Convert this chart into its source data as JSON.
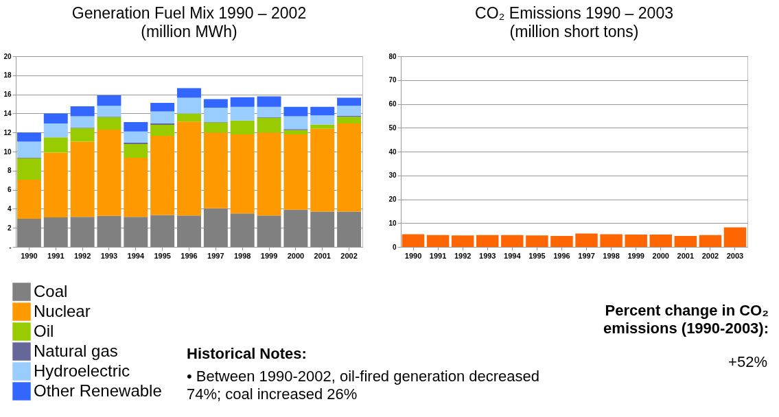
{
  "chart_data": [
    {
      "type": "bar",
      "title": "Generation Fuel Mix 1990 – 2002",
      "subtitle": "(million MWh)",
      "stacked": true,
      "categories": [
        "1990",
        "1991",
        "1992",
        "1993",
        "1994",
        "1995",
        "1996",
        "1997",
        "1998",
        "1999",
        "2000",
        "2001",
        "2002"
      ],
      "series": [
        {
          "name": "Coal",
          "color": "#808080",
          "values": [
            2.95,
            3.1,
            3.15,
            3.25,
            3.15,
            3.35,
            3.3,
            4.05,
            3.5,
            3.3,
            3.9,
            3.7,
            3.7
          ]
        },
        {
          "name": "Nuclear",
          "color": "#ff9900",
          "values": [
            4.1,
            6.8,
            7.9,
            9.05,
            6.2,
            8.3,
            9.85,
            7.95,
            8.3,
            8.7,
            7.9,
            8.7,
            9.25
          ]
        },
        {
          "name": "Oil",
          "color": "#99cc00",
          "values": [
            2.25,
            1.6,
            1.4,
            1.3,
            1.45,
            1.15,
            0.85,
            1.05,
            1.45,
            1.55,
            0.45,
            0.45,
            0.7
          ]
        },
        {
          "name": "Natural gas",
          "color": "#666699",
          "values": [
            0.05,
            0,
            0.05,
            0.05,
            0.15,
            0.15,
            null,
            0.05,
            null,
            0.05,
            0.1,
            null,
            0.1
          ]
        },
        {
          "name": "Hydroelectric",
          "color": "#99ccff",
          "values": [
            1.7,
            1.45,
            1.2,
            1.15,
            1.15,
            1.25,
            1.65,
            1.5,
            1.45,
            1.1,
            1.35,
            0.95,
            1.05
          ]
        },
        {
          "name": "Other Renewable",
          "color": "#3366ff",
          "values": [
            0.95,
            1.05,
            1.05,
            1.1,
            1.0,
            0.9,
            1.0,
            0.9,
            1.0,
            1.1,
            1.0,
            0.9,
            0.85
          ]
        }
      ],
      "ylim": [
        0,
        20
      ],
      "yticks": [
        {
          "value": 0,
          "label": "-"
        },
        2,
        4,
        6,
        8,
        10,
        12,
        14,
        16,
        18,
        20
      ],
      "grid": "y",
      "legend": "bottom left",
      "annotations": [
        "Historical Notes:",
        "• Between 1990-2002, oil-fired generation decreased 74%; coal increased 26%"
      ]
    },
    {
      "type": "bar",
      "title": "CO₂ Emissions 1990 – 2003",
      "subtitle": "(million short tons)",
      "categories": [
        "1990",
        "1991",
        "1992",
        "1993",
        "1994",
        "1995",
        "1996",
        "1997",
        "1998",
        "1999",
        "2000",
        "2001",
        "2002",
        "2003"
      ],
      "values": [
        5.3,
        5.0,
        4.8,
        5.0,
        5.0,
        4.8,
        4.6,
        5.6,
        5.3,
        5.2,
        5.2,
        4.6,
        5.0,
        8.2
      ],
      "color": "#ff6600",
      "ylim": [
        0,
        80
      ],
      "yticks": [
        0,
        10,
        20,
        30,
        40,
        50,
        60,
        70,
        80
      ],
      "grid": "y",
      "annotations": [
        "Percent change in CO₂ emissions (1990-2003):",
        "+52%"
      ]
    }
  ]
}
